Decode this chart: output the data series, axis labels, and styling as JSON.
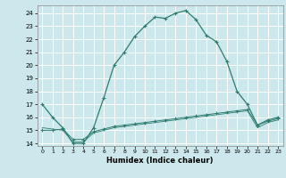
{
  "title": "",
  "xlabel": "Humidex (Indice chaleur)",
  "bg_color": "#cce8ec",
  "grid_color": "#ffffff",
  "line_color": "#2e7d6e",
  "xlim": [
    -0.5,
    23.5
  ],
  "ylim": [
    13.8,
    24.6
  ],
  "yticks": [
    14,
    15,
    16,
    17,
    18,
    19,
    20,
    21,
    22,
    23,
    24
  ],
  "xticks": [
    0,
    1,
    2,
    3,
    4,
    5,
    6,
    7,
    8,
    9,
    10,
    11,
    12,
    13,
    14,
    15,
    16,
    17,
    18,
    19,
    20,
    21,
    22,
    23
  ],
  "curve1_x": [
    0,
    1,
    2,
    3,
    4,
    5,
    6,
    7,
    8,
    9,
    10,
    11,
    12,
    13,
    14,
    15,
    16,
    17,
    18,
    19,
    20,
    21,
    22,
    23
  ],
  "curve1_y": [
    17.0,
    16.0,
    15.2,
    14.0,
    14.0,
    15.2,
    17.5,
    20.0,
    21.0,
    22.2,
    23.0,
    23.7,
    23.6,
    24.0,
    24.2,
    23.5,
    22.3,
    21.8,
    20.3,
    18.0,
    17.0,
    15.4,
    15.8,
    16.0
  ],
  "curve2_x": [
    0,
    1,
    2,
    3,
    4,
    5,
    6,
    7,
    8,
    9,
    10,
    11,
    12,
    13,
    14,
    15,
    16,
    17,
    18,
    19,
    20,
    21,
    22,
    23
  ],
  "curve2_y": [
    15.0,
    15.0,
    15.1,
    14.3,
    14.3,
    14.9,
    15.1,
    15.3,
    15.4,
    15.5,
    15.6,
    15.7,
    15.8,
    15.9,
    16.0,
    16.1,
    16.2,
    16.3,
    16.4,
    16.5,
    16.6,
    15.4,
    15.7,
    15.9
  ],
  "curve3_x": [
    0,
    1,
    2,
    3,
    4,
    5,
    6,
    7,
    8,
    9,
    10,
    11,
    12,
    13,
    14,
    15,
    16,
    17,
    18,
    19,
    20,
    21,
    22,
    23
  ],
  "curve3_y": [
    15.2,
    15.1,
    15.0,
    14.1,
    14.1,
    14.8,
    15.0,
    15.2,
    15.3,
    15.4,
    15.5,
    15.6,
    15.7,
    15.8,
    15.9,
    16.0,
    16.1,
    16.2,
    16.3,
    16.4,
    16.5,
    15.2,
    15.6,
    15.8
  ]
}
